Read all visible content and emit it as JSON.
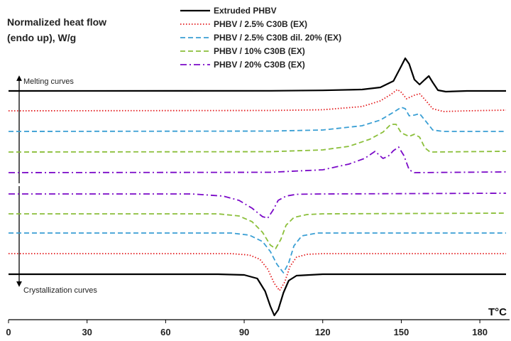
{
  "chart_data": {
    "type": "line",
    "title": "",
    "ylabel": [
      "Normalized heat flow",
      "(endo up), W/g"
    ],
    "xlabel": "T°C",
    "xlim": [
      0,
      190
    ],
    "xticks": [
      0,
      30,
      60,
      90,
      120,
      150,
      180
    ],
    "grid": false,
    "legend_position": "top-right",
    "annotations": {
      "melting": "Melting curves",
      "crystallization": "Crystallization curves"
    },
    "series": [
      {
        "name": "Extruded PHBV",
        "color": "#000000",
        "style": "solid",
        "melting": [
          [
            0,
            0
          ],
          [
            100,
            0.02
          ],
          [
            120,
            0.08
          ],
          [
            135,
            0.2
          ],
          [
            142,
            0.5
          ],
          [
            147,
            1.4
          ],
          [
            150,
            3.5
          ],
          [
            151.5,
            4.6
          ],
          [
            153,
            3.8
          ],
          [
            155,
            1.6
          ],
          [
            157,
            0.9
          ],
          [
            159,
            1.6
          ],
          [
            160.5,
            2.1
          ],
          [
            162,
            1.2
          ],
          [
            164,
            0.1
          ],
          [
            167,
            -0.1
          ],
          [
            175,
            0
          ],
          [
            190,
            0
          ]
        ],
        "crystallization": [
          [
            0,
            0
          ],
          [
            80,
            0
          ],
          [
            90,
            -0.1
          ],
          [
            95,
            -0.6
          ],
          [
            98,
            -2.4
          ],
          [
            100,
            -4.5
          ],
          [
            101.5,
            -5.8
          ],
          [
            103,
            -5.0
          ],
          [
            105,
            -2.6
          ],
          [
            107,
            -0.9
          ],
          [
            110,
            -0.2
          ],
          [
            120,
            0
          ],
          [
            190,
            0
          ]
        ]
      },
      {
        "name": "PHBV / 2.5% C30B (EX)",
        "color": "#e31a1c",
        "style": "dotted",
        "melting": [
          [
            0,
            0
          ],
          [
            100,
            0.05
          ],
          [
            120,
            0.15
          ],
          [
            135,
            0.6
          ],
          [
            142,
            1.4
          ],
          [
            146,
            2.3
          ],
          [
            148.5,
            3.0
          ],
          [
            150,
            2.6
          ],
          [
            152,
            1.7
          ],
          [
            155,
            2.2
          ],
          [
            157,
            2.4
          ],
          [
            159,
            1.6
          ],
          [
            162,
            0.3
          ],
          [
            166,
            -0.1
          ],
          [
            175,
            0
          ],
          [
            190,
            0.1
          ]
        ],
        "crystallization": [
          [
            0,
            0
          ],
          [
            85,
            0
          ],
          [
            92,
            -0.2
          ],
          [
            96,
            -0.8
          ],
          [
            99,
            -2.2
          ],
          [
            101.5,
            -4.2
          ],
          [
            103.5,
            -5.2
          ],
          [
            105.5,
            -4.0
          ],
          [
            107.5,
            -1.8
          ],
          [
            110,
            -0.5
          ],
          [
            114,
            -0.1
          ],
          [
            120,
            0
          ],
          [
            190,
            0
          ]
        ]
      },
      {
        "name": "PHBV / 2.5% C30B dil. 20% (EX)",
        "color": "#3a9fd4",
        "style": "dashed",
        "melting": [
          [
            0,
            0
          ],
          [
            100,
            0.05
          ],
          [
            120,
            0.2
          ],
          [
            135,
            0.8
          ],
          [
            142,
            1.6
          ],
          [
            147,
            2.7
          ],
          [
            150,
            3.4
          ],
          [
            151.5,
            3.2
          ],
          [
            153,
            2.2
          ],
          [
            155,
            2.3
          ],
          [
            157,
            2.5
          ],
          [
            159,
            1.6
          ],
          [
            162,
            0.2
          ],
          [
            166,
            0
          ],
          [
            190,
            0
          ]
        ],
        "crystallization": [
          [
            0,
            0
          ],
          [
            85,
            0
          ],
          [
            92,
            -0.3
          ],
          [
            97,
            -1.2
          ],
          [
            100,
            -2.6
          ],
          [
            102.5,
            -4.4
          ],
          [
            105,
            -5.6
          ],
          [
            107,
            -4.2
          ],
          [
            109,
            -1.8
          ],
          [
            112,
            -0.4
          ],
          [
            118,
            0
          ],
          [
            190,
            0
          ]
        ]
      },
      {
        "name": "PHBV / 10% C30B (EX)",
        "color": "#8bbf3a",
        "style": "dashed",
        "melting": [
          [
            0,
            0
          ],
          [
            100,
            0.05
          ],
          [
            120,
            0.3
          ],
          [
            130,
            0.8
          ],
          [
            138,
            1.8
          ],
          [
            143,
            2.8
          ],
          [
            146,
            3.9
          ],
          [
            148,
            3.9
          ],
          [
            150,
            2.7
          ],
          [
            153,
            2.2
          ],
          [
            155,
            2.5
          ],
          [
            157,
            2.1
          ],
          [
            159,
            0.6
          ],
          [
            161,
            0
          ],
          [
            190,
            0.1
          ]
        ],
        "crystallization": [
          [
            0,
            0
          ],
          [
            80,
            0
          ],
          [
            88,
            -0.3
          ],
          [
            93,
            -1.1
          ],
          [
            97,
            -2.6
          ],
          [
            100,
            -4.4
          ],
          [
            102,
            -4.9
          ],
          [
            104,
            -3.6
          ],
          [
            106,
            -1.6
          ],
          [
            109,
            -0.5
          ],
          [
            114,
            -0.1
          ],
          [
            120,
            0
          ],
          [
            190,
            0.1
          ]
        ]
      },
      {
        "name": "PHBV / 20% C30B (EX)",
        "color": "#7b0ac8",
        "style": "dashdot",
        "melting": [
          [
            0,
            0
          ],
          [
            100,
            0.05
          ],
          [
            120,
            0.4
          ],
          [
            130,
            1.2
          ],
          [
            136,
            2.0
          ],
          [
            140,
            3.0
          ],
          [
            143,
            2.0
          ],
          [
            145,
            2.3
          ],
          [
            147,
            3.1
          ],
          [
            149,
            3.6
          ],
          [
            151,
            2.4
          ],
          [
            153,
            0.4
          ],
          [
            155,
            0
          ],
          [
            190,
            0.1
          ]
        ],
        "crystallization": [
          [
            0,
            0
          ],
          [
            70,
            0
          ],
          [
            82,
            -0.3
          ],
          [
            88,
            -0.9
          ],
          [
            93,
            -2.0
          ],
          [
            97,
            -3.2
          ],
          [
            99,
            -3.4
          ],
          [
            101,
            -2.3
          ],
          [
            103,
            -0.9
          ],
          [
            106,
            -0.3
          ],
          [
            110,
            -0.05
          ],
          [
            120,
            0
          ],
          [
            190,
            0.1
          ]
        ]
      }
    ]
  }
}
